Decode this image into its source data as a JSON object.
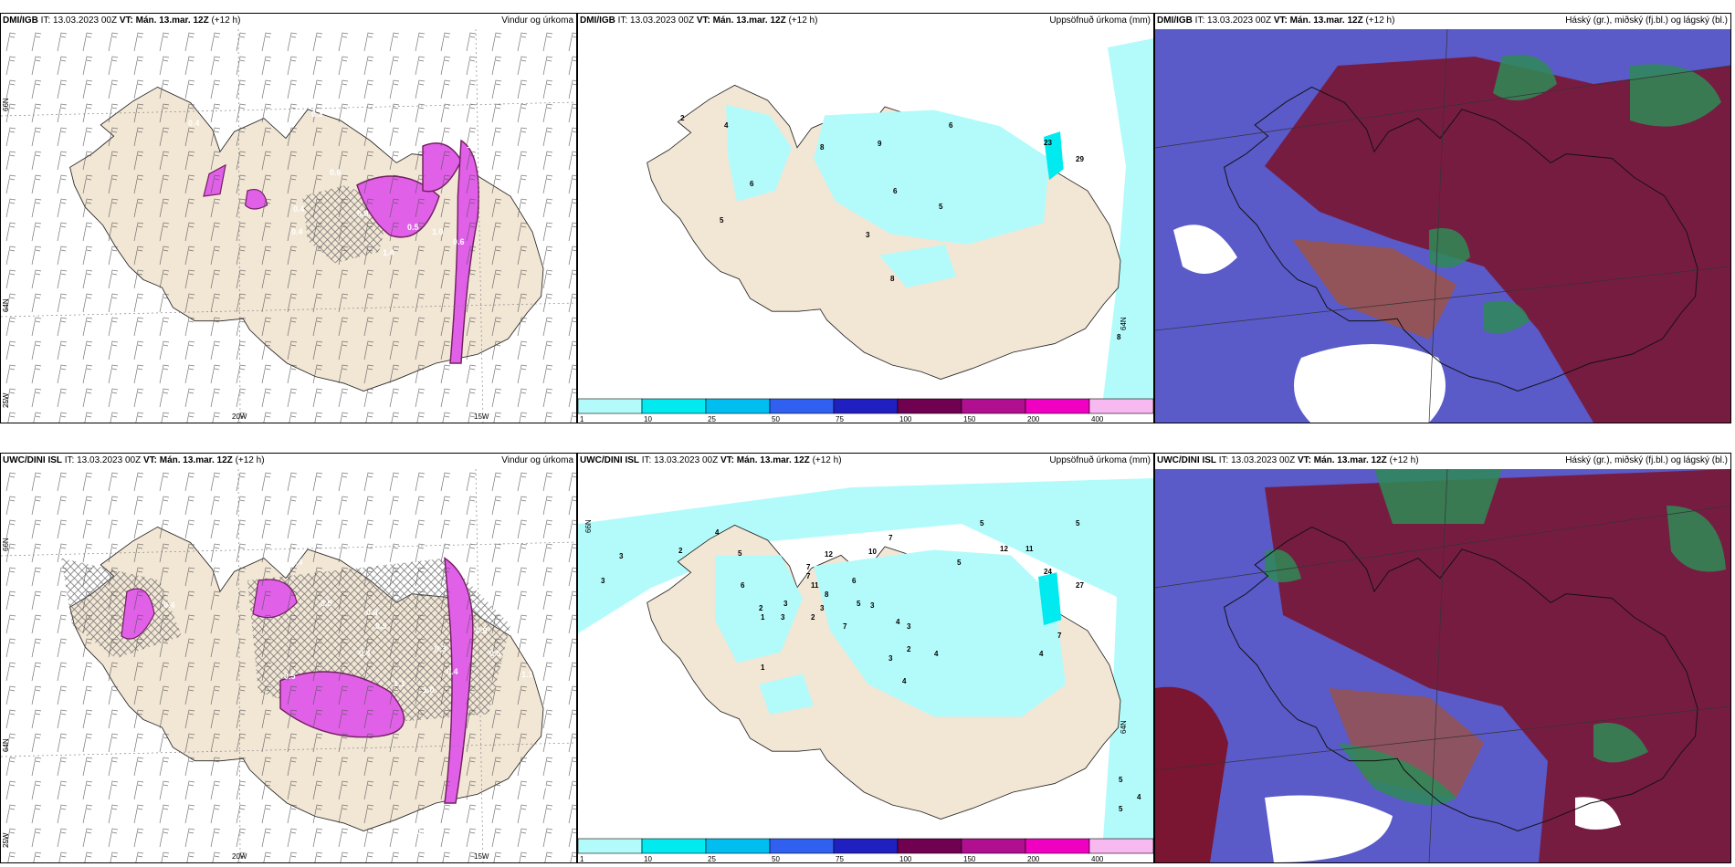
{
  "rows": [
    {
      "model": "DMI/IGB",
      "panels": [
        {
          "it_label": "IT:",
          "it_value": "13.03.2023 00Z",
          "vt_label": "VT:",
          "vt_value": "Mán. 13.mar. 12Z",
          "lead": "(+12 h)",
          "title": "Vindur og úrkoma",
          "axis": {
            "lat1": "66N",
            "lat2": "64N",
            "lon_w": "25W",
            "lon1": "20W",
            "lon2": "15W"
          },
          "labels": [
            "0.4",
            "0.3",
            "0.6",
            "0.4",
            "0.8",
            "0.5",
            "1.4",
            "1.0",
            "0.6",
            "1.9",
            "2.8",
            "0.4",
            "0.7",
            "3.5"
          ]
        },
        {
          "it_label": "IT:",
          "it_value": "13.03.2023 00Z",
          "vt_label": "VT:",
          "vt_value": "Mán. 13.mar. 12Z",
          "lead": "(+12 h)",
          "title": "Uppsöfnuð úrkoma (mm)",
          "axis": {
            "lat2": "64N"
          },
          "labels": [
            "2",
            "4",
            "8",
            "6",
            "9",
            "6",
            "23",
            "29",
            "6",
            "5",
            "8",
            "5",
            "3",
            "8"
          ]
        },
        {
          "it_label": "IT:",
          "it_value": "13.03.2023 00Z",
          "vt_label": "VT:",
          "vt_value": "Mán. 13.mar. 12Z",
          "lead": "(+12 h)",
          "title": "Háský (gr.), miðský (fj.bl.) og lágský (bl.)"
        }
      ]
    },
    {
      "model": "UWC/DINI ISL",
      "panels": [
        {
          "it_label": "IT:",
          "it_value": "13.03.2023 00Z",
          "vt_label": "VT:",
          "vt_value": "Mán. 13.mar. 12Z",
          "lead": "(+12 h)",
          "title": "Vindur og úrkoma",
          "axis": {
            "lat1": "66N",
            "lat2": "64N",
            "lon_w": "25W",
            "lon1": "20W",
            "lon2": "15W"
          },
          "labels": [
            "0.5",
            "0.4",
            "0.4",
            "0.5",
            "0.4",
            "0.8",
            "0.5",
            "0.3",
            "0.5",
            "0.6",
            "0.4",
            "1.1",
            "1.0",
            "0.9",
            "0.5",
            "1.1",
            "3.8",
            "2.5",
            "0.5"
          ]
        },
        {
          "it_label": "IT:",
          "it_value": "13.03.2023 00Z",
          "vt_label": "VT:",
          "vt_value": "Mán. 13.mar. 12Z",
          "lead": "(+12 h)",
          "title": "Uppsöfnuð úrkoma (mm)",
          "axis": {
            "lat1": "66N",
            "lat2": "64N"
          },
          "labels": [
            "3",
            "3",
            "2",
            "4",
            "5",
            "6",
            "1",
            "7",
            "12",
            "10",
            "7",
            "5",
            "5",
            "12",
            "11",
            "24",
            "27",
            "3",
            "7",
            "11",
            "8",
            "6",
            "3",
            "2",
            "3",
            "7",
            "5",
            "4",
            "3",
            "3",
            "2",
            "4",
            "1",
            "2",
            "3",
            "4",
            "4",
            "5",
            "7",
            "5",
            "5",
            "4"
          ]
        },
        {
          "it_label": "IT:",
          "it_value": "13.03.2023 00Z",
          "vt_label": "VT:",
          "vt_value": "Mán. 13.mar. 12Z",
          "lead": "(+12 h)",
          "title": "Háský (gr.), miðský (fj.bl.) og lágský (bl.)"
        }
      ]
    }
  ],
  "legend": {
    "ticks": [
      "1",
      "10",
      "25",
      "50",
      "75",
      "100",
      "150",
      "200",
      "400"
    ],
    "colors": [
      "#b3fbfb",
      "#00eaf0",
      "#00bff0",
      "#3060f0",
      "#2020c0",
      "#700050",
      "#b01090",
      "#f000c0",
      "#f8b8f0"
    ]
  },
  "colors": {
    "land": "#f2e6d5",
    "precip_wind": "#e060e8",
    "precip_wind_dark": "#70205e",
    "precip_accum": "#b3fbfb",
    "high_cloud": "#2e8b57",
    "mid_cloud": "#7a1532",
    "low_cloud": "#5a5ac8"
  }
}
